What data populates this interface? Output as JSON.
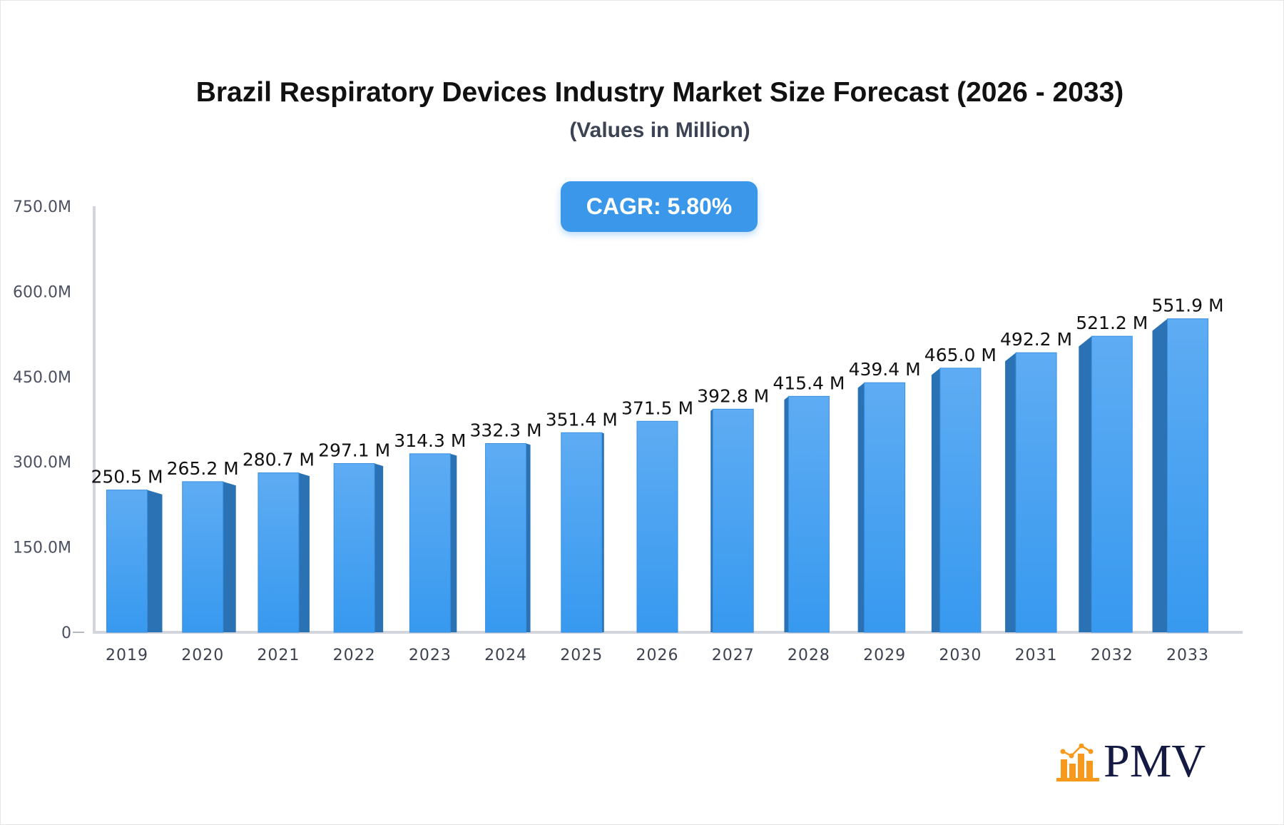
{
  "chart_data": {
    "type": "bar",
    "title": "Brazil Respiratory Devices Industry Market Size Forecast (2026 - 2033)",
    "subtitle": "(Values in Million)",
    "categories": [
      "2019",
      "2020",
      "2021",
      "2022",
      "2023",
      "2024",
      "2025",
      "2026",
      "2027",
      "2028",
      "2029",
      "2030",
      "2031",
      "2032",
      "2033"
    ],
    "values": [
      250.5,
      265.2,
      280.7,
      297.1,
      314.3,
      332.3,
      351.4,
      371.5,
      392.8,
      415.4,
      439.4,
      465.0,
      492.2,
      521.2,
      551.9
    ],
    "data_labels": [
      "250.5 M",
      "265.2 M",
      "280.7 M",
      "297.1 M",
      "314.3 M",
      "332.3 M",
      "351.4 M",
      "371.5 M",
      "392.8 M",
      "415.4 M",
      "439.4 M",
      "465.0 M",
      "492.2 M",
      "521.2 M",
      "551.9 M"
    ],
    "ylim": [
      0,
      750
    ],
    "yticks": [
      0,
      150,
      300,
      450,
      600,
      750
    ],
    "ytick_labels": [
      "0",
      "150.0M",
      "300.0M",
      "450.0M",
      "600.0M",
      "750.0M"
    ],
    "xlabel": "",
    "ylabel": "",
    "grid": false,
    "colors": {
      "bar_front": "#3d9cf0",
      "bar_top": "#5daaf2",
      "bar_side": "#2a72b3",
      "axis": "#d3d5dc"
    }
  },
  "cagr_label": "CAGR: 5.80%",
  "logo": {
    "text": "PMV",
    "icon": "bar-chart-logo-icon",
    "icon_color": "#f7991c",
    "text_color": "#141a42"
  }
}
